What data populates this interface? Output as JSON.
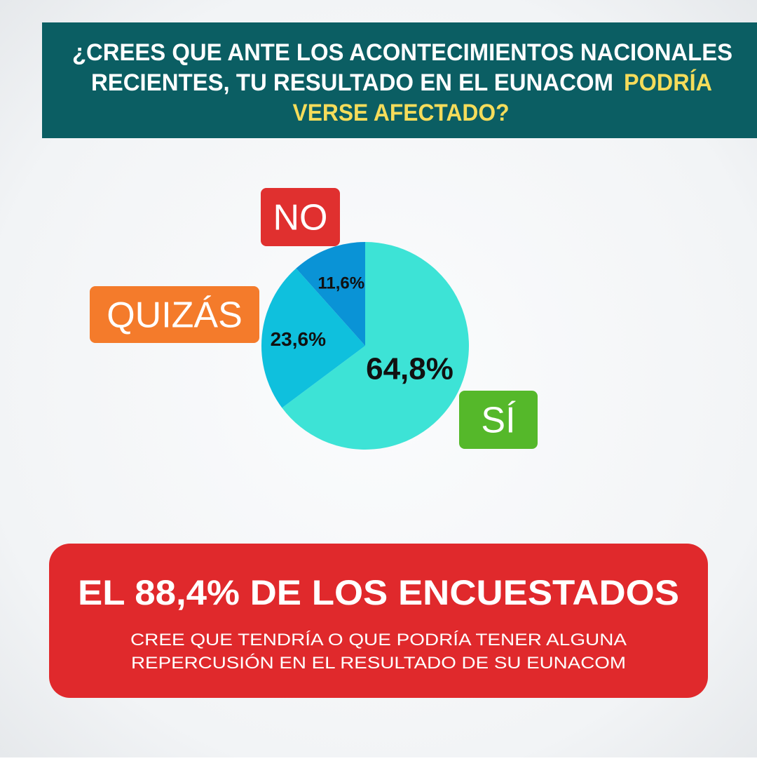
{
  "header": {
    "line1": "¿CREES QUE ANTE LOS ACONTECIMIENTOS NACIONALES",
    "line2": "RECIENTES, TU RESULTADO EN EL EUNACOM",
    "line2_highlight": "PODRÍA",
    "line3_highlight": "VERSE AFECTADO?"
  },
  "chart_data": {
    "type": "pie",
    "categories": [
      "SÍ",
      "QUIZÁS",
      "NO"
    ],
    "values": [
      64.8,
      23.6,
      11.6
    ],
    "value_labels": [
      "64,8%",
      "23,6%",
      "11,6%"
    ],
    "colors": [
      "#3de3d6",
      "#0fc0dd",
      "#0a93d6"
    ],
    "label_colors": [
      "#55b82a",
      "#f47b2b",
      "#e0302f"
    ]
  },
  "callout": {
    "headline": "EL 88,4% DE LOS ENCUESTADOS",
    "body_lines": [
      "CREE QUE TENDRÍA O QUE PODRÍA TENER ALGUNA",
      "REPERCUSIÓN EN EL RESULTADO DE SU EUNACOM"
    ]
  }
}
